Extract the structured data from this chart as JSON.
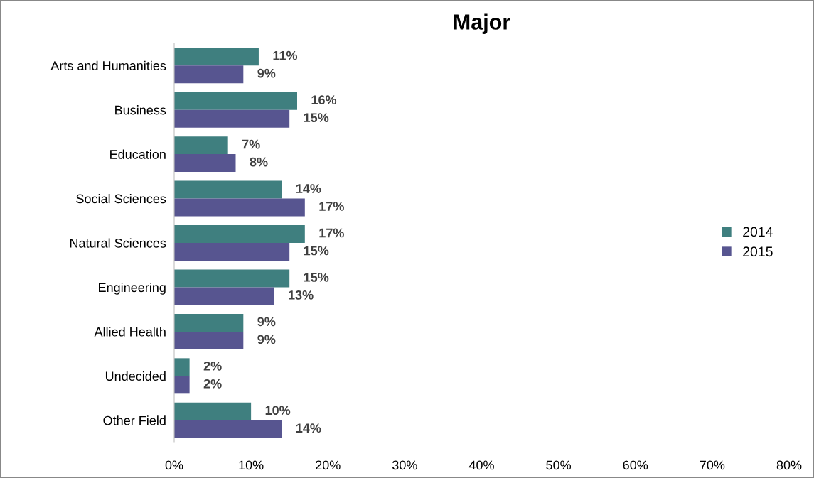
{
  "chart_data": {
    "type": "bar",
    "orientation": "horizontal",
    "title": "Major",
    "categories": [
      "Arts and Humanities",
      "Business",
      "Education",
      "Social Sciences",
      "Natural Sciences",
      "Engineering",
      "Allied Health",
      "Undecided",
      "Other Field"
    ],
    "series": [
      {
        "name": "2014",
        "color": "#3f7f7f",
        "values": [
          11,
          16,
          7,
          14,
          17,
          15,
          9,
          2,
          10
        ],
        "value_labels": [
          "11%",
          "16%",
          "7%",
          "14%",
          "17%",
          "15%",
          "9%",
          "2%",
          "10%"
        ]
      },
      {
        "name": "2015",
        "color": "#575590",
        "values": [
          9,
          15,
          8,
          17,
          15,
          13,
          9,
          2,
          14
        ],
        "value_labels": [
          "9%",
          "15%",
          "8%",
          "17%",
          "15%",
          "13%",
          "9%",
          "2%",
          "14%"
        ]
      }
    ],
    "xlim": [
      0,
      80
    ],
    "xticks": [
      {
        "value": 0,
        "label": "0%"
      },
      {
        "value": 10,
        "label": "10%"
      },
      {
        "value": 20,
        "label": "20%"
      },
      {
        "value": 30,
        "label": "30%"
      },
      {
        "value": 40,
        "label": "40%"
      },
      {
        "value": 50,
        "label": "50%"
      },
      {
        "value": 60,
        "label": "60%"
      },
      {
        "value": 70,
        "label": "70%"
      },
      {
        "value": 80,
        "label": "80%"
      }
    ],
    "grid": false,
    "legend": "right"
  }
}
